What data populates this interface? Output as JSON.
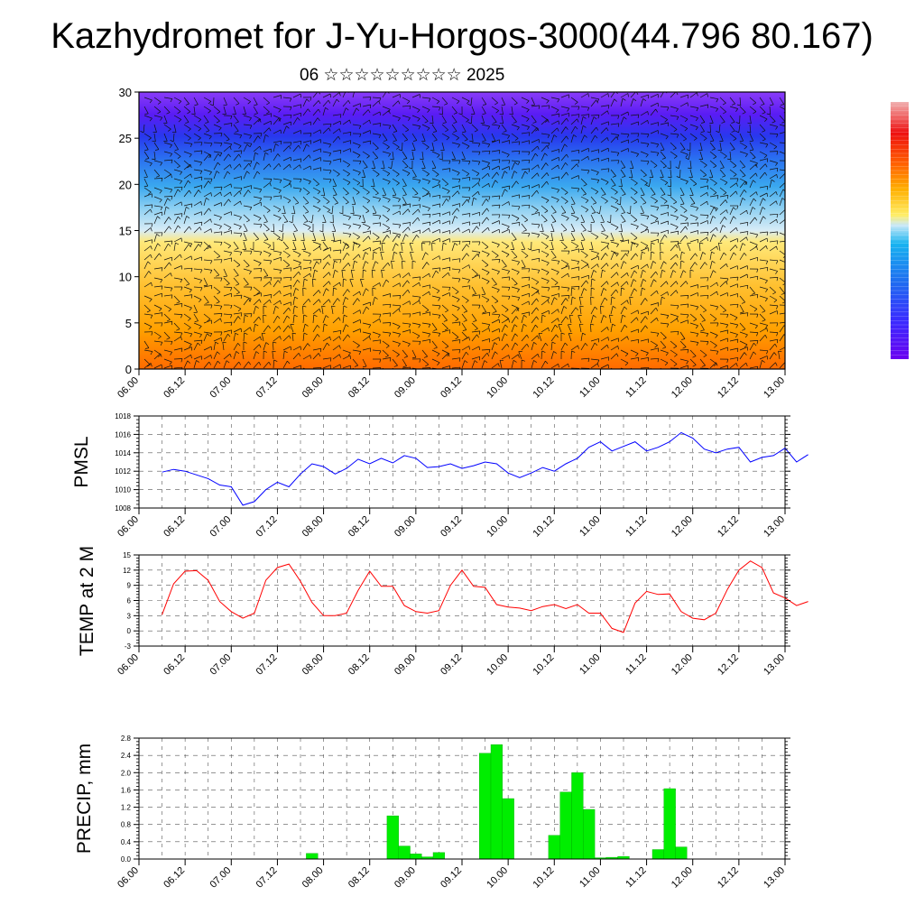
{
  "title": "Kazhydromet for J-Yu-Horgos-3000(44.796 80.167)",
  "subtitle": "06 ☆☆☆☆☆☆☆☆☆ 2025",
  "x_ticks": [
    "06.00",
    "06.12",
    "07.00",
    "07.12",
    "08.00",
    "08.12",
    "09.00",
    "09.12",
    "10.00",
    "10.12",
    "11.00",
    "11.12",
    "12.00",
    "12.12",
    "13.00"
  ],
  "colors": {
    "pmsl_line": "#0000ff",
    "temp_line": "#ff0000",
    "precip_bar": "#00ee00",
    "colorbar_stops": [
      "#6a00f0",
      "#3a2cff",
      "#1e6cf0",
      "#18b4f0",
      "#c8e8f8",
      "#ffee66",
      "#ffb000",
      "#ff6000",
      "#ee1010",
      "#f0b0b0"
    ]
  },
  "chart_data": [
    {
      "type": "heatmap",
      "name": "cross-section",
      "ylim": [
        0,
        30
      ],
      "y_ticks": [
        "0",
        "5",
        "10",
        "15",
        "20",
        "25",
        "30"
      ],
      "note_vector_barbs": true
    },
    {
      "type": "line",
      "ylabel": "PMSL",
      "ylim": [
        1008,
        1018
      ],
      "y_ticks": [
        "1008",
        "1010",
        "1012",
        "1014",
        "1016",
        "1018"
      ],
      "x_start": 0,
      "x_step_hours": 3,
      "values": [
        1011.9,
        1012.2,
        1012.0,
        1011.6,
        1011.2,
        1010.5,
        1010.3,
        1008.3,
        1008.7,
        1010.0,
        1010.8,
        1010.3,
        1011.7,
        1012.8,
        1012.5,
        1011.7,
        1012.3,
        1013.3,
        1012.8,
        1013.4,
        1012.9,
        1013.7,
        1013.4,
        1012.4,
        1012.5,
        1012.8,
        1012.3,
        1012.6,
        1013.0,
        1012.8,
        1011.8,
        1011.3,
        1011.8,
        1012.4,
        1012.0,
        1012.8,
        1013.4,
        1014.6,
        1015.2,
        1014.2,
        1014.7,
        1015.2,
        1014.2,
        1014.6,
        1015.2,
        1016.2,
        1015.6,
        1014.4,
        1014.0,
        1014.4,
        1014.6,
        1013.0,
        1013.5,
        1013.7,
        1014.5,
        1013.0,
        1013.8
      ]
    },
    {
      "type": "line",
      "ylabel": "TEMP at 2 M",
      "ylim": [
        -3,
        15
      ],
      "y_ticks": [
        "-3",
        "0",
        "3",
        "6",
        "9",
        "12",
        "15"
      ],
      "x_start": 0,
      "x_step_hours": 3,
      "values": [
        3.2,
        9.3,
        11.8,
        11.9,
        10.0,
        5.8,
        3.8,
        2.5,
        3.5,
        10.0,
        12.5,
        13.2,
        9.8,
        5.6,
        3.0,
        3.0,
        3.5,
        8.0,
        11.8,
        8.8,
        8.8,
        5.0,
        3.8,
        3.5,
        4.0,
        9.0,
        12.0,
        8.8,
        8.6,
        5.2,
        4.7,
        4.5,
        4.0,
        4.8,
        5.2,
        4.4,
        5.2,
        3.5,
        3.5,
        0.5,
        -0.3,
        5.5,
        7.8,
        7.2,
        7.3,
        3.8,
        2.5,
        2.2,
        3.5,
        8.2,
        12.0,
        13.8,
        12.5,
        7.5,
        6.5,
        5.0,
        5.8
      ]
    },
    {
      "type": "bar",
      "ylabel": "PRECIP, mm",
      "ylim": [
        0,
        2.8
      ],
      "y_ticks": [
        "0.0",
        "0.4",
        "0.8",
        "1.2",
        "1.6",
        "2.0",
        "2.4",
        "2.8"
      ],
      "x_start": 0,
      "x_step_hours": 3,
      "values": [
        0,
        0,
        0,
        0,
        0,
        0,
        0,
        0,
        0,
        0,
        0,
        0,
        0,
        0.13,
        0,
        0,
        0,
        0,
        0,
        0,
        1.0,
        0.3,
        0.12,
        0.05,
        0.15,
        0,
        0,
        0,
        2.45,
        2.65,
        1.4,
        0,
        0,
        0,
        0.55,
        1.55,
        2.0,
        1.15,
        0.03,
        0.04,
        0.06,
        0,
        0,
        0.22,
        1.63,
        0.28,
        0,
        0,
        0,
        0,
        0,
        0,
        0,
        0,
        0,
        0,
        0
      ]
    }
  ]
}
